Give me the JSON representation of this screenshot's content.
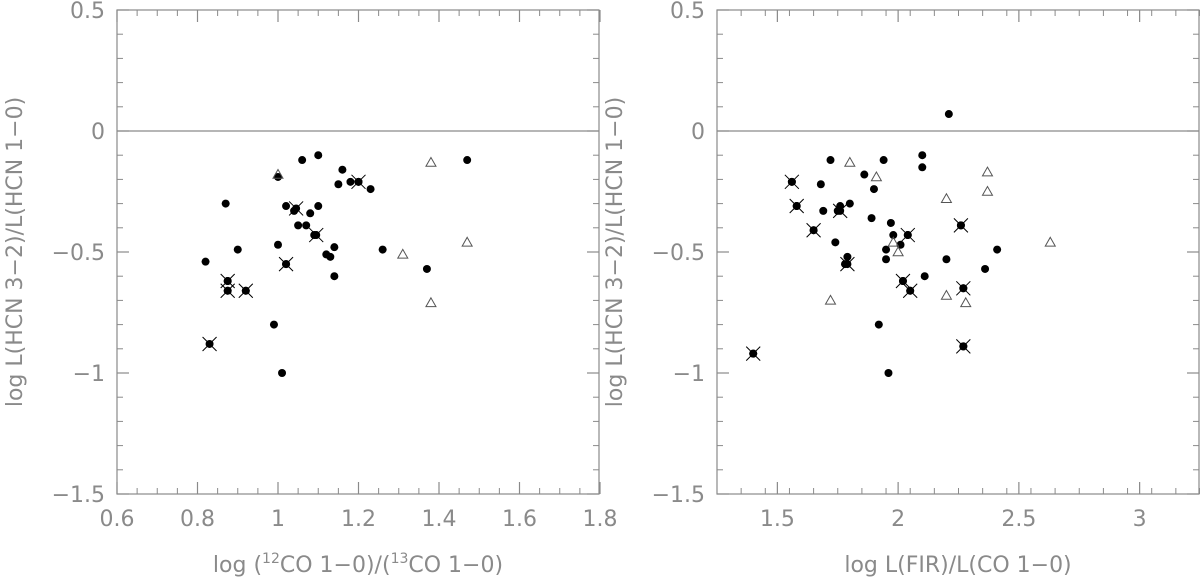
{
  "chart_data": [
    {
      "type": "scatter",
      "title": "",
      "xlabel_pre": "log (",
      "xlabel_sup1": "12",
      "xlabel_mid": "CO 1−0)/(",
      "xlabel_sup2": "13",
      "xlabel_post": "CO 1−0)",
      "ylabel": "log L(HCN 3−2)/L(HCN 1−0)",
      "xlim": [
        0.6,
        1.8
      ],
      "ylim": [
        -1.5,
        0.5
      ],
      "xticks": [
        0.6,
        0.8,
        1,
        1.2,
        1.4,
        1.6,
        1.8
      ],
      "xtick_labels": [
        "0.6",
        "0.8",
        "1",
        "1.2",
        "1.4",
        "1.6",
        "1.8"
      ],
      "xminor_step": 0.05,
      "yticks": [
        -1.5,
        -1,
        -0.5,
        0,
        0.5
      ],
      "ytick_labels": [
        "−1.5",
        "−1",
        "−0.5",
        "0",
        "0.5"
      ],
      "yminor_step": 0.1,
      "reference_line_y": 0,
      "grid": false,
      "series": [
        {
          "marker": "filled-circle",
          "x": [
            0.82,
            0.87,
            0.875,
            0.875,
            0.9,
            0.92,
            0.99,
            1.0,
            1.0,
            1.01,
            1.02,
            1.02,
            1.04,
            1.05,
            1.06,
            1.07,
            1.08,
            1.09,
            1.1,
            1.1,
            1.12,
            1.13,
            1.14,
            1.14,
            1.15,
            1.16,
            1.18,
            1.2,
            1.23,
            1.26,
            1.37,
            1.47
          ],
          "y": [
            -0.54,
            -0.3,
            -0.62,
            -0.66,
            -0.49,
            -0.66,
            -0.8,
            -0.19,
            -0.47,
            -1.0,
            -0.31,
            -0.55,
            -0.33,
            -0.39,
            -0.12,
            -0.39,
            -0.34,
            -0.43,
            -0.1,
            -0.31,
            -0.51,
            -0.52,
            -0.48,
            -0.6,
            -0.22,
            -0.16,
            -0.21,
            -0.21,
            -0.24,
            -0.49,
            -0.57,
            -0.12
          ]
        },
        {
          "marker": "crossed-circle",
          "x": [
            0.83,
            0.875,
            0.875,
            0.92,
            1.02,
            1.045,
            1.095,
            1.2
          ],
          "y": [
            -0.88,
            -0.62,
            -0.66,
            -0.66,
            -0.55,
            -0.32,
            -0.43,
            -0.21
          ]
        },
        {
          "marker": "open-triangle",
          "x": [
            1.0,
            1.31,
            1.38,
            1.38,
            1.47
          ],
          "y": [
            -0.18,
            -0.51,
            -0.13,
            -0.71,
            -0.46
          ]
        }
      ]
    },
    {
      "type": "scatter",
      "title": "",
      "xlabel": "log L(FIR)/L(CO 1−0)",
      "ylabel": "log L(HCN 3−2)/L(HCN 1−0)",
      "xlim": [
        1.25,
        3.25
      ],
      "ylim": [
        -1.5,
        0.5
      ],
      "xticks": [
        1.5,
        2,
        2.5,
        3
      ],
      "xtick_labels": [
        "1.5",
        "2",
        "2.5",
        "3"
      ],
      "xminor_step": 0.1,
      "yticks": [
        -1.5,
        -1,
        -0.5,
        0,
        0.5
      ],
      "ytick_labels": [
        "−1.5",
        "−1",
        "−0.5",
        "0",
        "0.5"
      ],
      "yminor_step": 0.1,
      "reference_line_y": 0,
      "grid": false,
      "series": [
        {
          "marker": "filled-circle",
          "x": [
            1.4,
            1.56,
            1.58,
            1.65,
            1.68,
            1.69,
            1.72,
            1.74,
            1.75,
            1.76,
            1.78,
            1.79,
            1.8,
            1.86,
            1.89,
            1.9,
            1.92,
            1.94,
            1.95,
            1.95,
            1.96,
            1.97,
            1.98,
            2.01,
            2.02,
            2.04,
            2.05,
            2.1,
            2.1,
            2.11,
            2.2,
            2.21,
            2.26,
            2.27,
            2.27,
            2.36,
            2.41
          ],
          "y": [
            -0.92,
            -0.21,
            -0.31,
            -0.41,
            -0.22,
            -0.33,
            -0.12,
            -0.46,
            -0.33,
            -0.31,
            -0.55,
            -0.52,
            -0.3,
            -0.18,
            -0.36,
            -0.24,
            -0.8,
            -0.12,
            -0.49,
            -0.53,
            -1.0,
            -0.38,
            -0.43,
            -0.47,
            -0.62,
            -0.43,
            -0.66,
            -0.1,
            -0.15,
            -0.6,
            -0.53,
            0.07,
            -0.39,
            -0.65,
            -0.89,
            -0.57,
            -0.49
          ]
        },
        {
          "marker": "crossed-circle",
          "x": [
            1.4,
            1.56,
            1.58,
            1.65,
            1.76,
            1.79,
            2.02,
            2.04,
            2.05,
            2.26,
            2.27,
            2.27
          ],
          "y": [
            -0.92,
            -0.21,
            -0.31,
            -0.41,
            -0.33,
            -0.55,
            -0.62,
            -0.43,
            -0.66,
            -0.39,
            -0.65,
            -0.89
          ]
        },
        {
          "marker": "open-triangle",
          "x": [
            1.72,
            1.8,
            1.91,
            1.98,
            2.0,
            2.2,
            2.2,
            2.28,
            2.37,
            2.37,
            2.63
          ],
          "y": [
            -0.7,
            -0.13,
            -0.19,
            -0.46,
            -0.5,
            -0.28,
            -0.68,
            -0.71,
            -0.17,
            -0.25,
            -0.46
          ]
        }
      ]
    }
  ]
}
